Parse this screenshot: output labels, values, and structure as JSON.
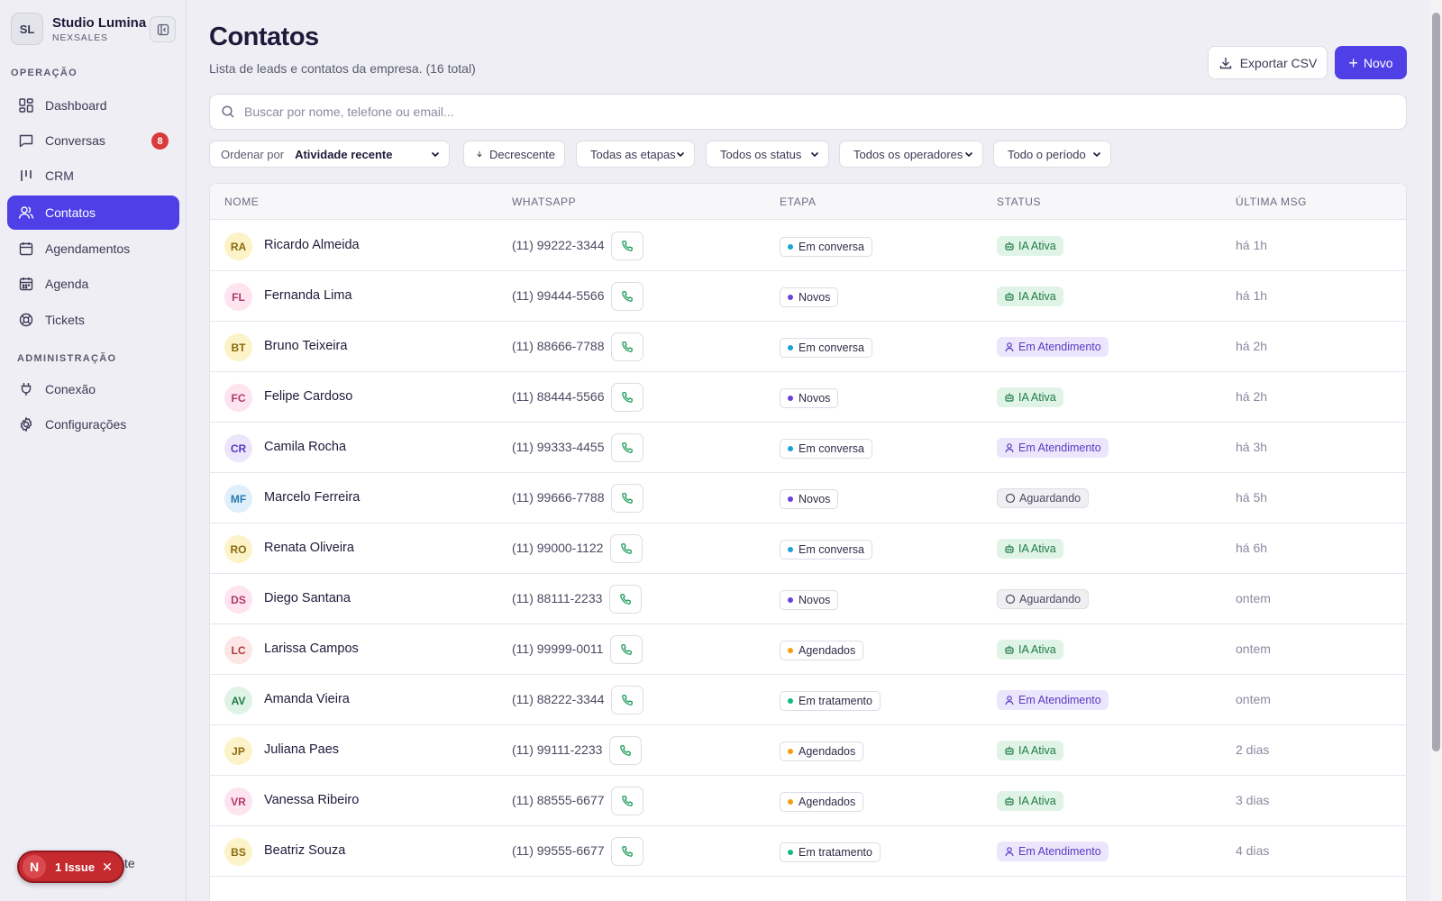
{
  "brand": {
    "initials": "SL",
    "name": "Studio Lumina",
    "sub": "NEXSALES"
  },
  "sidebar": {
    "section_op": "OPERAÇÃO",
    "section_admin": "ADMINISTRAÇÃO",
    "items": [
      {
        "label": "Dashboard",
        "icon": "dashboard-icon"
      },
      {
        "label": "Conversas",
        "icon": "chat-icon",
        "badge": "8"
      },
      {
        "label": "CRM",
        "icon": "kanban-icon"
      },
      {
        "label": "Contatos",
        "icon": "users-icon",
        "active": true
      },
      {
        "label": "Agendamentos",
        "icon": "calendar-icon"
      },
      {
        "label": "Agenda",
        "icon": "calendar-grid-icon"
      },
      {
        "label": "Tickets",
        "icon": "lifebuoy-icon"
      },
      {
        "label": "Conexão",
        "icon": "plug-icon"
      },
      {
        "label": "Configurações",
        "icon": "gear-icon"
      }
    ],
    "footer_partial_text": "te"
  },
  "issue_badge": {
    "letter": "N",
    "label": "1 Issue"
  },
  "header": {
    "title": "Contatos",
    "subtitle": "Lista de leads e contatos da empresa. (16 total)",
    "export_label": "Exportar CSV",
    "new_label": "Novo"
  },
  "search": {
    "placeholder": "Buscar por nome, telefone ou email..."
  },
  "filters": {
    "sort_prefix": "Ordenar por",
    "sort_value": "Atividade recente",
    "order": "Decrescente",
    "stages": "Todas as etapas",
    "statuses": "Todos os status",
    "operators": "Todos os operadores",
    "period": "Todo o período"
  },
  "table": {
    "columns": [
      "NOME",
      "WHATSAPP",
      "ETAPA",
      "STATUS",
      "ÚLTIMA MSG"
    ],
    "rows": [
      {
        "initials": "RA",
        "name": "Ricardo Almeida",
        "phone": "(11) 99222-3344",
        "stage": "Em conversa",
        "status": "IA Ativa",
        "last": "há 1h"
      },
      {
        "initials": "FL",
        "name": "Fernanda Lima",
        "phone": "(11) 99444-5566",
        "stage": "Novos",
        "status": "IA Ativa",
        "last": "há 1h"
      },
      {
        "initials": "BT",
        "name": "Bruno Teixeira",
        "phone": "(11) 88666-7788",
        "stage": "Em conversa",
        "status": "Em Atendimento",
        "last": "há 2h"
      },
      {
        "initials": "FC",
        "name": "Felipe Cardoso",
        "phone": "(11) 88444-5566",
        "stage": "Novos",
        "status": "IA Ativa",
        "last": "há 2h"
      },
      {
        "initials": "CR",
        "name": "Camila Rocha",
        "phone": "(11) 99333-4455",
        "stage": "Em conversa",
        "status": "Em Atendimento",
        "last": "há 3h"
      },
      {
        "initials": "MF",
        "name": "Marcelo Ferreira",
        "phone": "(11) 99666-7788",
        "stage": "Novos",
        "status": "Aguardando",
        "last": "há 5h"
      },
      {
        "initials": "RO",
        "name": "Renata Oliveira",
        "phone": "(11) 99000-1122",
        "stage": "Em conversa",
        "status": "IA Ativa",
        "last": "há 6h"
      },
      {
        "initials": "DS",
        "name": "Diego Santana",
        "phone": "(11) 88111-2233",
        "stage": "Novos",
        "status": "Aguardando",
        "last": "ontem"
      },
      {
        "initials": "LC",
        "name": "Larissa Campos",
        "phone": "(11) 99999-0011",
        "stage": "Agendados",
        "status": "IA Ativa",
        "last": "ontem"
      },
      {
        "initials": "AV",
        "name": "Amanda Vieira",
        "phone": "(11) 88222-3344",
        "stage": "Em tratamento",
        "status": "Em Atendimento",
        "last": "ontem"
      },
      {
        "initials": "JP",
        "name": "Juliana Paes",
        "phone": "(11) 99111-2233",
        "stage": "Agendados",
        "status": "IA Ativa",
        "last": "2 dias"
      },
      {
        "initials": "VR",
        "name": "Vanessa Ribeiro",
        "phone": "(11) 88555-6677",
        "stage": "Agendados",
        "status": "IA Ativa",
        "last": "3 dias"
      },
      {
        "initials": "BS",
        "name": "Beatriz Souza",
        "phone": "(11) 99555-6677",
        "stage": "Em tratamento",
        "status": "Em Atendimento",
        "last": "4 dias"
      }
    ]
  },
  "colors": {
    "accent": "#4f3fe6",
    "stage_dots": {
      "Em conversa": "#1aa3d9",
      "Novos": "#6a3fe0",
      "Agendados": "#f59e0b",
      "Em tratamento": "#10b981"
    },
    "avatar_palette": [
      {
        "bg": "#fdf3c8",
        "fg": "#8a6a10"
      },
      {
        "bg": "#fde4ee",
        "fg": "#b2396b"
      },
      {
        "bg": "#ece6fb",
        "fg": "#5a3bc4"
      },
      {
        "bg": "#dff0fb",
        "fg": "#2a79b0"
      },
      {
        "bg": "#fde6e6",
        "fg": "#b23a3a"
      },
      {
        "bg": "#dff4e6",
        "fg": "#1f7a45"
      }
    ]
  }
}
